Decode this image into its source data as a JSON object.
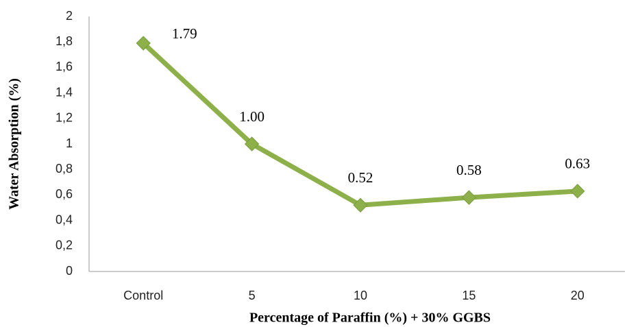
{
  "chart_data": {
    "type": "line",
    "x_label": "Percentage of Paraffin (%) + 30% GGBS",
    "y_label": "Water Absorption (%)",
    "categories": [
      "Control",
      "5",
      "10",
      "15",
      "20"
    ],
    "series": [
      {
        "color": "#8db04a",
        "values": [
          1.79,
          1.0,
          0.52,
          0.58,
          0.63
        ],
        "value_labels": [
          "1.79",
          "1.00",
          "0.52",
          "0.58",
          "0.63"
        ]
      }
    ],
    "ylim": [
      0,
      2
    ],
    "yticks": [
      0,
      {
        "value": 0.2,
        "label": "0,2"
      },
      {
        "value": 0.4,
        "label": "0,4"
      },
      {
        "value": 0.6,
        "label": "0,6"
      },
      {
        "value": 0.8,
        "label": "0,8"
      },
      1,
      {
        "value": 1.2,
        "label": "1,2"
      },
      {
        "value": 1.4,
        "label": "1,4"
      },
      {
        "value": 1.6,
        "label": "1,6"
      },
      {
        "value": 1.8,
        "label": "1,8"
      },
      2
    ],
    "grid": false
  }
}
